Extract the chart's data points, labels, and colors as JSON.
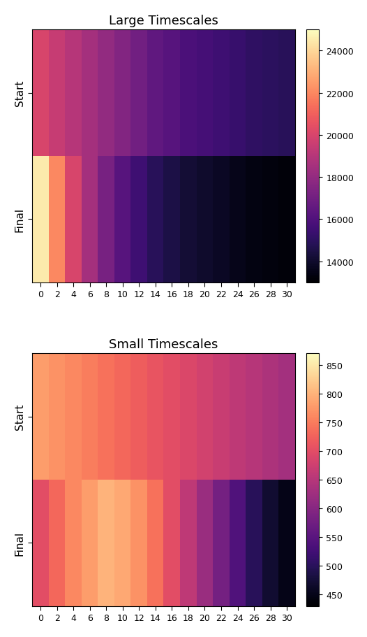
{
  "large_title": "Large Timescales",
  "small_title": "Small Timescales",
  "xtick_labels": [
    0,
    2,
    4,
    6,
    8,
    10,
    12,
    14,
    16,
    18,
    20,
    22,
    24,
    26,
    28,
    30
  ],
  "ytick_labels_large": [
    "Start",
    "Final"
  ],
  "ytick_labels_small": [
    "Start",
    "Final"
  ],
  "large_start_row": [
    20000,
    19500,
    19000,
    18500,
    18000,
    17500,
    17000,
    16500,
    16200,
    15900,
    15700,
    15500,
    15300,
    15100,
    15000,
    14900
  ],
  "large_final_row": [
    24500,
    22000,
    20000,
    18500,
    17200,
    16200,
    15500,
    14900,
    14500,
    14200,
    14000,
    13800,
    13600,
    13400,
    13300,
    13200
  ],
  "small_start_row": [
    780,
    770,
    760,
    750,
    740,
    730,
    720,
    710,
    700,
    690,
    680,
    670,
    660,
    650,
    640,
    630
  ],
  "small_final_row": [
    700,
    730,
    760,
    780,
    800,
    790,
    770,
    740,
    700,
    660,
    620,
    580,
    540,
    500,
    470,
    450
  ],
  "large_vmin": 13000,
  "large_vmax": 25000,
  "small_vmin": 430,
  "small_vmax": 870,
  "cmap": "magma",
  "figsize": [
    5.26,
    9.12
  ],
  "dpi": 100
}
